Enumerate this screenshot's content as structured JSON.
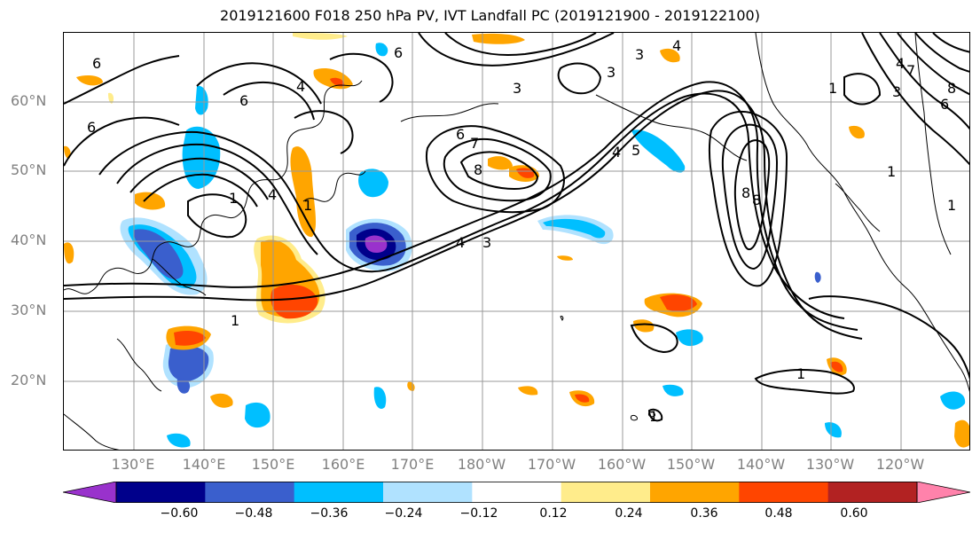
{
  "title": "2019121600 F018 250 hPa PV, IVT Landfall PC (2019121900 - 2019122100)",
  "lat_labels": [
    "60°N",
    "50°N",
    "40°N",
    "30°N",
    "20°N"
  ],
  "lon_labels": [
    "130°E",
    "140°E",
    "150°E",
    "160°E",
    "170°E",
    "180°W",
    "170°W",
    "160°W",
    "150°W",
    "140°W",
    "130°W",
    "120°W"
  ],
  "contour_labels": [
    "6",
    "6",
    "6",
    "4",
    "4",
    "1",
    "1",
    "4",
    "6",
    "7",
    "6",
    "8",
    "3",
    "3",
    "3",
    "4",
    "5",
    "4",
    "3",
    "1",
    "8",
    "8",
    "1",
    "1",
    "4",
    "3",
    "1",
    "7",
    "8",
    "6",
    "1",
    "1"
  ],
  "colorbar": {
    "ticks": [
      "−0.60",
      "−0.48",
      "−0.36",
      "−0.24",
      "−0.12",
      "0.12",
      "0.24",
      "0.36",
      "0.48",
      "0.60"
    ],
    "colors": [
      "#9932cc",
      "#00008b",
      "#3a5fcd",
      "#00bfff",
      "#b0e2ff",
      "#ffffff",
      "#ffec8b",
      "#ffa500",
      "#ff4500",
      "#b22222",
      "#ff82ab"
    ]
  },
  "colors": {
    "grid": "#999999",
    "contour": "#000000",
    "axis_label": "#808080"
  }
}
